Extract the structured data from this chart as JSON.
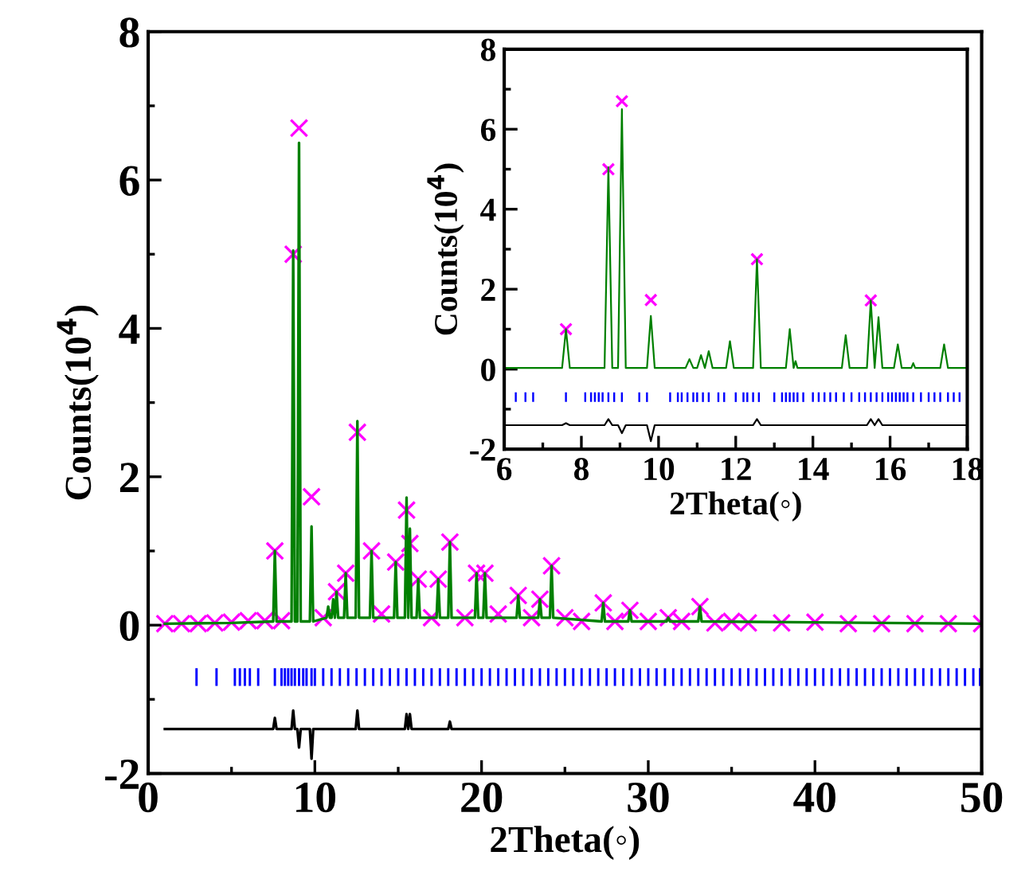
{
  "chart_data": [
    {
      "type": "line",
      "xlabel": "2Theta(◦)",
      "ylabel": "Counts(10$^{4}$)",
      "xlim": [
        0,
        50
      ],
      "ylim": [
        -2,
        8
      ],
      "xticks": [
        0,
        10,
        20,
        30,
        40,
        50
      ],
      "yticks": [
        -2,
        0,
        2,
        4,
        6,
        8
      ],
      "grid": false,
      "legend": false,
      "series": [
        {
          "type": "scatter",
          "color": "#ff00ff",
          "marker": "cross",
          "x": [
            1,
            2,
            3,
            4,
            5,
            6,
            7,
            7.6,
            8,
            8.7,
            9.05,
            9.8,
            10.5,
            11.3,
            11.85,
            12.55,
            13.4,
            14,
            14.85,
            15.5,
            15.7,
            16.2,
            17,
            17.4,
            18.1,
            19,
            19.7,
            20.2,
            21,
            22.2,
            23,
            23.5,
            24.2,
            25,
            26,
            27.3,
            28,
            28.9,
            30,
            31.2,
            32,
            33.1,
            34,
            35,
            36,
            38,
            40,
            42,
            44,
            46,
            48,
            50
          ],
          "values": [
            0.02,
            0.02,
            0.02,
            0.03,
            0.04,
            0.06,
            0.06,
            1.0,
            0.06,
            5.0,
            6.7,
            1.73,
            0.1,
            0.45,
            0.7,
            2.6,
            1.0,
            0.15,
            0.85,
            1.55,
            1.1,
            0.62,
            0.1,
            0.62,
            1.12,
            0.1,
            0.7,
            0.7,
            0.15,
            0.4,
            0.1,
            0.35,
            0.8,
            0.1,
            0.05,
            0.3,
            0.05,
            0.2,
            0.05,
            0.1,
            0.05,
            0.25,
            0.03,
            0.05,
            0.03,
            0.03,
            0.04,
            0.02,
            0.02,
            0.02,
            0.02,
            0.02
          ]
        },
        {
          "color": "#008000",
          "marker": "none",
          "line_style": "solid",
          "x": [
            1,
            5,
            7.5,
            7.6,
            7.7,
            8.6,
            8.7,
            8.8,
            8.95,
            9.05,
            9.15,
            9.7,
            9.8,
            9.9,
            10.7,
            10.8,
            10.9,
            11.0,
            11.1,
            11.2,
            11.3,
            11.4,
            11.75,
            11.85,
            11.95,
            12.45,
            12.55,
            12.65,
            13.3,
            13.4,
            13.5,
            14.75,
            14.85,
            14.95,
            15.4,
            15.5,
            15.6,
            15.7,
            15.8,
            16.1,
            16.2,
            16.3,
            17.3,
            17.4,
            17.5,
            18.0,
            18.1,
            18.2,
            19.6,
            19.7,
            19.8,
            20.1,
            20.2,
            20.3,
            22.1,
            22.2,
            22.3,
            23.4,
            23.5,
            23.6,
            24.1,
            24.2,
            24.3,
            27.2,
            27.3,
            27.4,
            28.8,
            28.9,
            29.0,
            31.1,
            31.2,
            31.3,
            33.0,
            33.1,
            33.2,
            50
          ],
          "values": [
            0.02,
            0.03,
            0.05,
            1.0,
            0.05,
            0.05,
            5.05,
            0.05,
            0.05,
            6.5,
            0.05,
            0.05,
            1.33,
            0.05,
            0.1,
            0.25,
            0.1,
            0.1,
            0.35,
            0.1,
            0.45,
            0.1,
            0.1,
            0.7,
            0.1,
            0.1,
            2.75,
            0.1,
            0.1,
            1.0,
            0.1,
            0.1,
            0.85,
            0.1,
            0.1,
            1.72,
            0.1,
            1.3,
            0.1,
            0.1,
            0.62,
            0.1,
            0.1,
            0.62,
            0.1,
            0.1,
            1.12,
            0.1,
            0.1,
            0.7,
            0.1,
            0.1,
            0.7,
            0.1,
            0.1,
            0.4,
            0.1,
            0.1,
            0.35,
            0.1,
            0.1,
            0.8,
            0.1,
            0.05,
            0.3,
            0.05,
            0.05,
            0.2,
            0.05,
            0.05,
            0.1,
            0.05,
            0.05,
            0.25,
            0.05,
            0.02
          ]
        },
        {
          "type": "bar",
          "color": "#0000ff",
          "x": [
            2.9,
            4.1,
            5.2,
            5.5,
            5.8,
            6.1,
            6.6,
            7.6,
            8.0,
            8.2,
            8.4,
            8.6,
            8.8,
            9.05,
            9.3,
            9.5,
            9.8,
            10,
            10.5,
            11,
            11.5,
            12,
            12.5,
            13,
            13.5,
            14,
            14.5,
            15,
            15.5,
            16,
            16.5,
            17,
            17.5,
            18,
            18.5,
            19,
            19.5,
            20,
            20.5,
            21,
            21.5,
            22,
            22.5,
            23,
            23.5,
            24,
            24.5,
            25,
            25.5,
            26,
            26.5,
            27,
            27.5,
            28,
            28.5,
            29,
            29.5,
            30,
            30.5,
            31,
            31.5,
            32,
            32.5,
            33,
            33.5,
            34,
            34.5,
            35,
            35.5,
            36,
            36.5,
            37,
            37.5,
            38,
            38.5,
            39,
            39.5,
            40,
            40.5,
            41,
            41.5,
            42,
            42.5,
            43,
            43.5,
            44,
            44.5,
            45,
            45.5,
            46,
            46.5,
            47,
            47.5,
            48,
            48.5,
            49,
            49.5,
            49.9
          ],
          "base": [
            -0.82,
            -0.82,
            -0.82,
            -0.82,
            -0.82,
            -0.82,
            -0.82,
            -0.82,
            -0.82,
            -0.82,
            -0.82,
            -0.82,
            -0.82,
            -0.82,
            -0.82,
            -0.82,
            -0.82,
            -0.82,
            -0.82,
            -0.82,
            -0.82,
            -0.82,
            -0.82,
            -0.82,
            -0.82,
            -0.82,
            -0.82,
            -0.82,
            -0.82,
            -0.82,
            -0.82,
            -0.82,
            -0.82,
            -0.82,
            -0.82,
            -0.82,
            -0.82,
            -0.82,
            -0.82,
            -0.82,
            -0.82,
            -0.82,
            -0.82,
            -0.82,
            -0.82,
            -0.82,
            -0.82,
            -0.82,
            -0.82,
            -0.82,
            -0.82,
            -0.82,
            -0.82,
            -0.82,
            -0.82,
            -0.82,
            -0.82,
            -0.82,
            -0.82,
            -0.82,
            -0.82,
            -0.82,
            -0.82,
            -0.82,
            -0.82,
            -0.82,
            -0.82,
            -0.82,
            -0.82,
            -0.82,
            -0.82,
            -0.82,
            -0.82,
            -0.82,
            -0.82,
            -0.82,
            -0.82,
            -0.82,
            -0.82,
            -0.82,
            -0.82,
            -0.82,
            -0.82,
            -0.82,
            -0.82,
            -0.82,
            -0.82,
            -0.82,
            -0.82,
            -0.82,
            -0.82,
            -0.82,
            -0.82,
            -0.82,
            -0.82,
            -0.82,
            -0.82,
            -0.82
          ],
          "values": [
            0.24,
            0.24,
            0.24,
            0.24,
            0.24,
            0.24,
            0.24,
            0.24,
            0.24,
            0.24,
            0.24,
            0.24,
            0.24,
            0.24,
            0.24,
            0.24,
            0.24,
            0.24,
            0.24,
            0.24,
            0.24,
            0.24,
            0.24,
            0.24,
            0.24,
            0.24,
            0.24,
            0.24,
            0.24,
            0.24,
            0.24,
            0.24,
            0.24,
            0.24,
            0.24,
            0.24,
            0.24,
            0.24,
            0.24,
            0.24,
            0.24,
            0.24,
            0.24,
            0.24,
            0.24,
            0.24,
            0.24,
            0.24,
            0.24,
            0.24,
            0.24,
            0.24,
            0.24,
            0.24,
            0.24,
            0.24,
            0.24,
            0.24,
            0.24,
            0.24,
            0.24,
            0.24,
            0.24,
            0.24,
            0.24,
            0.24,
            0.24,
            0.24,
            0.24,
            0.24,
            0.24,
            0.24,
            0.24,
            0.24,
            0.24,
            0.24,
            0.24,
            0.24,
            0.24,
            0.24,
            0.24,
            0.24,
            0.24,
            0.24,
            0.24,
            0.24,
            0.24,
            0.24,
            0.24,
            0.24,
            0.24,
            0.24,
            0.24,
            0.24,
            0.24,
            0.24,
            0.24,
            0.24
          ]
        },
        {
          "color": "#000000",
          "marker": "none",
          "line_style": "solid",
          "x": [
            1,
            7.5,
            7.6,
            7.7,
            8.6,
            8.7,
            8.8,
            8.95,
            9.05,
            9.15,
            9.7,
            9.8,
            9.9,
            12.45,
            12.55,
            12.65,
            15.4,
            15.5,
            15.6,
            15.7,
            15.8,
            18.0,
            18.1,
            18.2,
            50
          ],
          "values": [
            -1.4,
            -1.4,
            -1.25,
            -1.4,
            -1.4,
            -1.15,
            -1.4,
            -1.4,
            -1.65,
            -1.4,
            -1.4,
            -1.8,
            -1.4,
            -1.4,
            -1.15,
            -1.4,
            -1.4,
            -1.2,
            -1.4,
            -1.2,
            -1.4,
            -1.4,
            -1.3,
            -1.4,
            -1.4
          ]
        }
      ]
    },
    {
      "type": "line",
      "xlabel": "2Theta(◦)",
      "ylabel": "Counts(10$^{4}$)",
      "xlim": [
        6,
        18
      ],
      "ylim": [
        -2,
        8
      ],
      "xticks": [
        6,
        8,
        10,
        12,
        14,
        16,
        18
      ],
      "yticks": [
        -2,
        0,
        2,
        4,
        6,
        8
      ],
      "grid": false,
      "legend": false,
      "series": [
        {
          "type": "scatter",
          "color": "#ff00ff",
          "marker": "cross",
          "x": [
            7.6,
            8.7,
            9.05,
            9.8,
            12.55,
            15.5
          ],
          "values": [
            1.0,
            5.0,
            6.7,
            1.73,
            2.75,
            1.72
          ]
        },
        {
          "color": "#008000",
          "marker": "none",
          "line_style": "solid",
          "x": [
            6,
            7.5,
            7.6,
            7.7,
            8.6,
            8.7,
            8.8,
            8.95,
            9.05,
            9.15,
            9.7,
            9.8,
            9.9,
            10.7,
            10.8,
            10.9,
            11.0,
            11.1,
            11.2,
            11.3,
            11.4,
            11.75,
            11.85,
            11.95,
            12.45,
            12.55,
            12.65,
            13.3,
            13.4,
            13.5,
            13.55,
            13.6,
            14.75,
            14.85,
            14.95,
            15.4,
            15.5,
            15.6,
            15.7,
            15.8,
            16.1,
            16.2,
            16.3,
            16.55,
            16.6,
            16.65,
            17.3,
            17.4,
            17.5,
            18
          ],
          "values": [
            0.03,
            0.03,
            1.0,
            0.03,
            0.03,
            5.05,
            0.03,
            0.03,
            6.5,
            0.03,
            0.03,
            1.33,
            0.03,
            0.03,
            0.25,
            0.03,
            0.03,
            0.35,
            0.03,
            0.45,
            0.03,
            0.03,
            0.7,
            0.03,
            0.03,
            2.75,
            0.03,
            0.03,
            1.0,
            0.03,
            0.2,
            0.03,
            0.03,
            0.85,
            0.03,
            0.03,
            1.72,
            0.03,
            1.3,
            0.03,
            0.03,
            0.62,
            0.03,
            0.03,
            0.15,
            0.03,
            0.03,
            0.62,
            0.03,
            0.03
          ]
        },
        {
          "type": "bar",
          "color": "#0000ff",
          "x": [
            6.3,
            6.55,
            6.75,
            7.6,
            8.1,
            8.25,
            8.35,
            8.45,
            8.55,
            8.7,
            8.85,
            9.05,
            9.5,
            9.7,
            10.3,
            10.5,
            10.6,
            10.75,
            10.9,
            11.0,
            11.15,
            11.3,
            11.55,
            11.7,
            12.0,
            12.2,
            12.3,
            12.45,
            12.6,
            13.0,
            13.2,
            13.3,
            13.4,
            13.5,
            13.6,
            13.75,
            14.0,
            14.15,
            14.3,
            14.45,
            14.6,
            14.8,
            15.0,
            15.2,
            15.35,
            15.5,
            15.65,
            15.8,
            15.95,
            16.05,
            16.15,
            16.25,
            16.35,
            16.45,
            16.6,
            16.8,
            17.0,
            17.15,
            17.3,
            17.5,
            17.65,
            17.8
          ],
          "base": [
            -0.82,
            -0.82,
            -0.82,
            -0.82,
            -0.82,
            -0.82,
            -0.82,
            -0.82,
            -0.82,
            -0.82,
            -0.82,
            -0.82,
            -0.82,
            -0.82,
            -0.82,
            -0.82,
            -0.82,
            -0.82,
            -0.82,
            -0.82,
            -0.82,
            -0.82,
            -0.82,
            -0.82,
            -0.82,
            -0.82,
            -0.82,
            -0.82,
            -0.82,
            -0.82,
            -0.82,
            -0.82,
            -0.82,
            -0.82,
            -0.82,
            -0.82,
            -0.82,
            -0.82,
            -0.82,
            -0.82,
            -0.82,
            -0.82,
            -0.82,
            -0.82,
            -0.82,
            -0.82,
            -0.82,
            -0.82,
            -0.82,
            -0.82,
            -0.82,
            -0.82,
            -0.82,
            -0.82,
            -0.82,
            -0.82,
            -0.82,
            -0.82,
            -0.82,
            -0.82,
            -0.82,
            -0.82
          ],
          "values": [
            0.24,
            0.24,
            0.24,
            0.24,
            0.24,
            0.24,
            0.24,
            0.24,
            0.24,
            0.24,
            0.24,
            0.24,
            0.24,
            0.24,
            0.24,
            0.24,
            0.24,
            0.24,
            0.24,
            0.24,
            0.24,
            0.24,
            0.24,
            0.24,
            0.24,
            0.24,
            0.24,
            0.24,
            0.24,
            0.24,
            0.24,
            0.24,
            0.24,
            0.24,
            0.24,
            0.24,
            0.24,
            0.24,
            0.24,
            0.24,
            0.24,
            0.24,
            0.24,
            0.24,
            0.24,
            0.24,
            0.24,
            0.24,
            0.24,
            0.24,
            0.24,
            0.24,
            0.24,
            0.24,
            0.24,
            0.24,
            0.24,
            0.24,
            0.24,
            0.24,
            0.24,
            0.24
          ]
        },
        {
          "color": "#000000",
          "marker": "none",
          "line_style": "solid",
          "x": [
            6,
            7.5,
            7.6,
            7.7,
            8.6,
            8.7,
            8.8,
            8.95,
            9.05,
            9.15,
            9.7,
            9.8,
            9.9,
            12.45,
            12.55,
            12.65,
            15.4,
            15.5,
            15.6,
            15.7,
            15.8,
            18
          ],
          "values": [
            -1.4,
            -1.4,
            -1.35,
            -1.4,
            -1.4,
            -1.25,
            -1.4,
            -1.4,
            -1.6,
            -1.4,
            -1.4,
            -1.8,
            -1.4,
            -1.4,
            -1.25,
            -1.4,
            -1.4,
            -1.25,
            -1.4,
            -1.25,
            -1.4,
            -1.4
          ]
        }
      ]
    }
  ]
}
